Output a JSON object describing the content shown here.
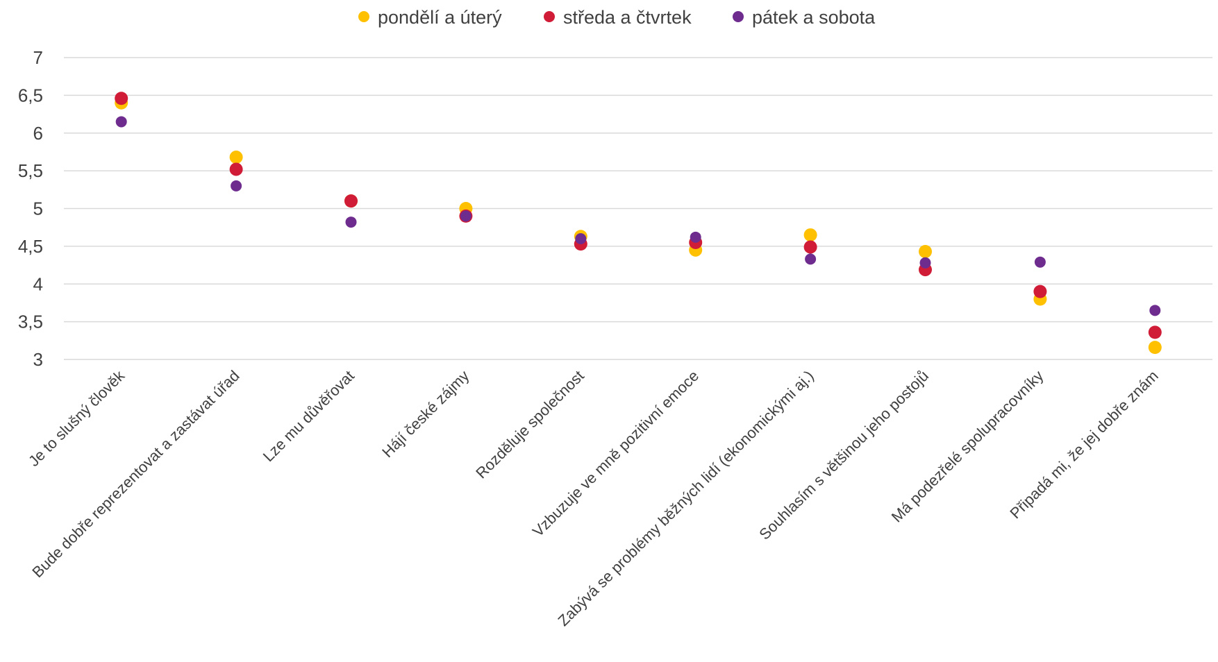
{
  "chart_data": {
    "type": "scatter",
    "categories": [
      "Je to slušný člověk",
      "Bude dobře reprezentovat a zastávat úřad",
      "Lze mu důvěřovat",
      "Hájí české zájmy",
      "Rozděluje společnost",
      "Vzbuzuje ve mně pozitivní emoce",
      "Zabývá se problémy běžných lidí (ekonomickými aj.)",
      "Souhlasím s většinou jeho postojů",
      "Má podezřelé spolupracovníky",
      "Připadá mi, že jej dobře znám"
    ],
    "series": [
      {
        "name": "pondělí a úterý",
        "color": "#FFC000",
        "values": [
          6.4,
          5.68,
          5.1,
          5.0,
          4.63,
          4.45,
          4.65,
          4.43,
          3.8,
          3.16
        ]
      },
      {
        "name": "středa a čtvrtek",
        "color": "#D01C36",
        "values": [
          6.46,
          5.52,
          5.1,
          4.9,
          4.53,
          4.55,
          4.49,
          4.19,
          3.9,
          3.36
        ]
      },
      {
        "name": "pátek a sobota",
        "color": "#6F2C8F",
        "values": [
          6.15,
          5.3,
          4.82,
          4.9,
          4.6,
          4.62,
          4.33,
          4.28,
          4.29,
          3.65
        ]
      }
    ],
    "yticks": [
      "3",
      "3,5",
      "4",
      "4,5",
      "5",
      "5,5",
      "6",
      "6,5",
      "7"
    ],
    "ylim": [
      3,
      7
    ],
    "grid": true,
    "legend_position": "top-center",
    "title": "",
    "xlabel": "",
    "ylabel": ""
  }
}
